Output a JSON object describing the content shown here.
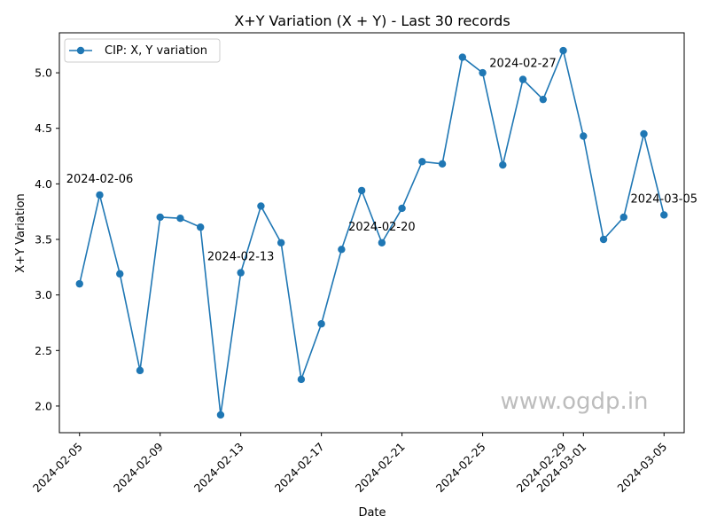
{
  "chart_data": {
    "type": "line",
    "title": "X+Y Variation (X + Y) - Last 30 records",
    "xlabel": "Date",
    "ylabel": "X+Y Variation",
    "series": [
      {
        "name": "CIP: X, Y variation",
        "color": "#1f77b4",
        "marker": "circle",
        "x": [
          "2024-02-05",
          "2024-02-06",
          "2024-02-07",
          "2024-02-08",
          "2024-02-09",
          "2024-02-10",
          "2024-02-11",
          "2024-02-12",
          "2024-02-13",
          "2024-02-14",
          "2024-02-15",
          "2024-02-16",
          "2024-02-17",
          "2024-02-18",
          "2024-02-19",
          "2024-02-20",
          "2024-02-21",
          "2024-02-22",
          "2024-02-23",
          "2024-02-24",
          "2024-02-25",
          "2024-02-26",
          "2024-02-27",
          "2024-02-28",
          "2024-02-29",
          "2024-03-01",
          "2024-03-02",
          "2024-03-03",
          "2024-03-04",
          "2024-03-05"
        ],
        "y": [
          3.1,
          3.9,
          3.19,
          2.32,
          3.7,
          3.69,
          3.61,
          1.92,
          3.2,
          3.8,
          3.47,
          2.24,
          2.74,
          3.41,
          3.94,
          3.47,
          3.78,
          4.2,
          4.18,
          5.14,
          5.0,
          4.17,
          4.94,
          4.76,
          5.2,
          4.43,
          3.5,
          3.7,
          4.45,
          3.72
        ]
      }
    ],
    "xticks": [
      "2024-02-05",
      "2024-02-09",
      "2024-02-13",
      "2024-02-17",
      "2024-02-21",
      "2024-02-25",
      "2024-02-29",
      "2024-03-01",
      "2024-03-05"
    ],
    "yticks": [
      "2.0",
      "2.5",
      "3.0",
      "3.5",
      "4.0",
      "4.5",
      "5.0"
    ],
    "xlim": [
      "2024-02-04",
      "2024-03-06"
    ],
    "ylim": [
      1.76,
      5.36
    ],
    "grid": false,
    "legend": "upper-left",
    "annotations": [
      {
        "x": "2024-02-06",
        "y": 3.9,
        "text": "2024-02-06"
      },
      {
        "x": "2024-02-13",
        "y": 3.2,
        "text": "2024-02-13"
      },
      {
        "x": "2024-02-20",
        "y": 3.47,
        "text": "2024-02-20"
      },
      {
        "x": "2024-02-27",
        "y": 4.94,
        "text": "2024-02-27"
      },
      {
        "x": "2024-03-05",
        "y": 3.72,
        "text": "2024-03-05"
      }
    ]
  },
  "watermark": "www.ogdp.in"
}
